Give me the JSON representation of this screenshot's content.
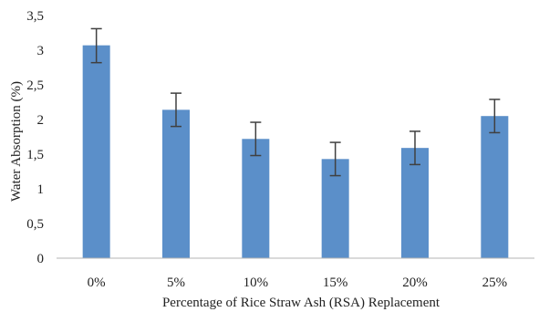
{
  "chart_data": {
    "type": "bar",
    "categories": [
      "0%",
      "5%",
      "10%",
      "15%",
      "20%",
      "25%"
    ],
    "values": [
      3.07,
      2.14,
      1.72,
      1.43,
      1.59,
      2.05
    ],
    "error_bars": [
      [
        2.82,
        3.31
      ],
      [
        1.9,
        2.38
      ],
      [
        1.48,
        1.96
      ],
      [
        1.19,
        1.67
      ],
      [
        1.35,
        1.83
      ],
      [
        1.81,
        2.29
      ]
    ],
    "y_ticks": [
      "0",
      "0,5",
      "1",
      "1,5",
      "2",
      "2,5",
      "3",
      "3,5"
    ],
    "ylim": [
      0,
      3.5
    ],
    "xlabel": "Percentage of Rice Straw Ash (RSA) Replacement",
    "ylabel": "Water Absorption (%)",
    "bar_color": "#5b8fc9",
    "error_color": "#404040",
    "grid": false,
    "legend": "none"
  }
}
